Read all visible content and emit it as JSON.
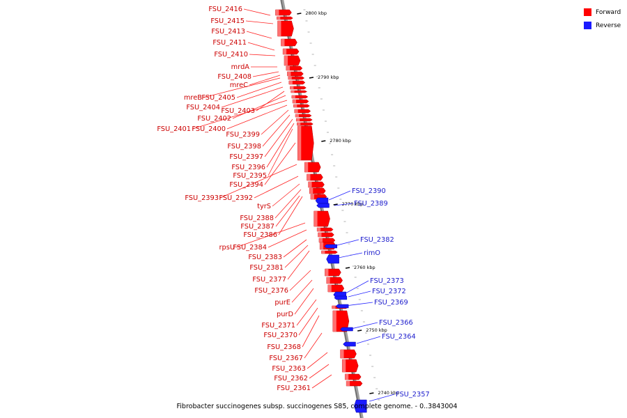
{
  "diagram": {
    "caption": "Fibrobacter succinogenes subsp. succinogenes S85, complete genome. - 0..3843004",
    "colors": {
      "forward": "#ff0000",
      "reverse": "#1a1aff",
      "label_forward": "#cc0000",
      "label_reverse": "#1a1acc",
      "axis": "#a0a0a0"
    },
    "legend": [
      {
        "label": "Forward",
        "color": "#ff0000"
      },
      {
        "label": "Reverse",
        "color": "#1a1aff"
      }
    ],
    "ticks": [
      "2800 kbp",
      "2790 kbp",
      "2780 kbp",
      "2770 kbp",
      "2760 kbp",
      "2750 kbp",
      "2740 kbp"
    ],
    "forward_labels": [
      "FSU_2416",
      "FSU_2415",
      "FSU_2413",
      "FSU_2411",
      "FSU_2410",
      "mrdA",
      "FSU_2408",
      "mreC",
      "mreB",
      "FSU_2405",
      "FSU_2404",
      "FSU_2403",
      "FSU_2402",
      "FSU_2401",
      "FSU_2400",
      "FSU_2399",
      "FSU_2398",
      "FSU_2397",
      "FSU_2396",
      "FSU_2395",
      "FSU_2394",
      "FSU_2393",
      "FSU_2392",
      "tyrS",
      "FSU_2388",
      "FSU_2387",
      "FSU_2386",
      "rpsU",
      "FSU_2384",
      "FSU_2383",
      "FSU_2381",
      "FSU_2377",
      "FSU_2376",
      "purE",
      "purD",
      "FSU_2371",
      "FSU_2370",
      "FSU_2368",
      "FSU_2367",
      "FSU_2363",
      "FSU_2362",
      "FSU_2361"
    ],
    "reverse_labels": [
      "FSU_2390",
      "FSU_2389",
      "FSU_2382",
      "rimO",
      "FSU_2373",
      "FSU_2372",
      "FSU_2369",
      "FSU_2366",
      "FSU_2364",
      "FSU_2357"
    ]
  }
}
